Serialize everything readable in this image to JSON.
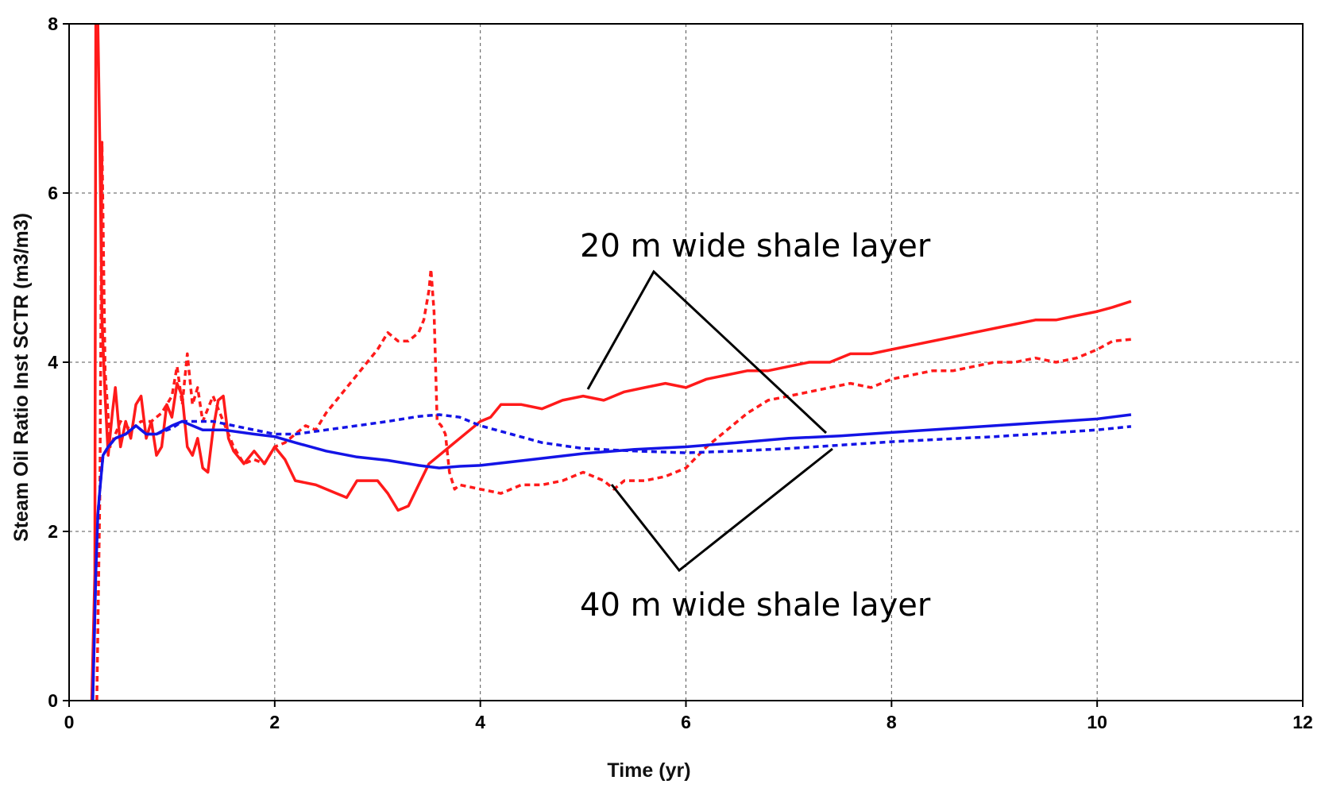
{
  "chart_data": {
    "type": "line",
    "xlabel": "Time (yr)",
    "ylabel": "Steam Oil Ratio Inst SCTR (m3/m3)",
    "xlim": [
      0,
      12
    ],
    "ylim": [
      0,
      8
    ],
    "x_ticks": [
      "0",
      "2",
      "4",
      "6",
      "8",
      "10",
      "12"
    ],
    "y_ticks": [
      "0",
      "2",
      "4",
      "6",
      "8"
    ],
    "grid": true,
    "annotations": [
      {
        "text": "20 m wide shale layer"
      },
      {
        "text": "40 m wide shale layer"
      }
    ],
    "series": [
      {
        "name": "red solid",
        "color": "#ff1a1a",
        "style": "solid",
        "points": [
          [
            0.22,
            0
          ],
          [
            0.25,
            1.5
          ],
          [
            0.26,
            8
          ],
          [
            0.28,
            8
          ],
          [
            0.3,
            6.5
          ],
          [
            0.32,
            4.5
          ],
          [
            0.35,
            3.6
          ],
          [
            0.38,
            2.9
          ],
          [
            0.42,
            3.4
          ],
          [
            0.45,
            3.7
          ],
          [
            0.5,
            3.0
          ],
          [
            0.55,
            3.3
          ],
          [
            0.6,
            3.1
          ],
          [
            0.65,
            3.5
          ],
          [
            0.7,
            3.6
          ],
          [
            0.75,
            3.1
          ],
          [
            0.8,
            3.3
          ],
          [
            0.85,
            2.9
          ],
          [
            0.9,
            3.0
          ],
          [
            0.95,
            3.5
          ],
          [
            1.0,
            3.35
          ],
          [
            1.05,
            3.75
          ],
          [
            1.1,
            3.6
          ],
          [
            1.15,
            3.0
          ],
          [
            1.2,
            2.9
          ],
          [
            1.25,
            3.1
          ],
          [
            1.3,
            2.75
          ],
          [
            1.35,
            2.7
          ],
          [
            1.4,
            3.2
          ],
          [
            1.45,
            3.55
          ],
          [
            1.5,
            3.6
          ],
          [
            1.55,
            3.1
          ],
          [
            1.6,
            2.95
          ],
          [
            1.7,
            2.8
          ],
          [
            1.8,
            2.95
          ],
          [
            1.9,
            2.8
          ],
          [
            2.0,
            3.0
          ],
          [
            2.1,
            2.85
          ],
          [
            2.2,
            2.6
          ],
          [
            2.4,
            2.55
          ],
          [
            2.6,
            2.45
          ],
          [
            2.7,
            2.4
          ],
          [
            2.8,
            2.6
          ],
          [
            3.0,
            2.6
          ],
          [
            3.1,
            2.45
          ],
          [
            3.2,
            2.25
          ],
          [
            3.3,
            2.3
          ],
          [
            3.4,
            2.55
          ],
          [
            3.5,
            2.8
          ],
          [
            3.6,
            2.9
          ],
          [
            3.7,
            3.0
          ],
          [
            3.8,
            3.1
          ],
          [
            3.9,
            3.2
          ],
          [
            4.0,
            3.3
          ],
          [
            4.1,
            3.35
          ],
          [
            4.2,
            3.5
          ],
          [
            4.4,
            3.5
          ],
          [
            4.6,
            3.45
          ],
          [
            4.8,
            3.55
          ],
          [
            5.0,
            3.6
          ],
          [
            5.2,
            3.55
          ],
          [
            5.4,
            3.65
          ],
          [
            5.6,
            3.7
          ],
          [
            5.8,
            3.75
          ],
          [
            6.0,
            3.7
          ],
          [
            6.2,
            3.8
          ],
          [
            6.4,
            3.85
          ],
          [
            6.6,
            3.9
          ],
          [
            6.8,
            3.9
          ],
          [
            7.0,
            3.95
          ],
          [
            7.2,
            4.0
          ],
          [
            7.4,
            4.0
          ],
          [
            7.6,
            4.1
          ],
          [
            7.8,
            4.1
          ],
          [
            8.0,
            4.15
          ],
          [
            8.2,
            4.2
          ],
          [
            8.4,
            4.25
          ],
          [
            8.6,
            4.3
          ],
          [
            8.8,
            4.35
          ],
          [
            9.0,
            4.4
          ],
          [
            9.2,
            4.45
          ],
          [
            9.4,
            4.5
          ],
          [
            9.6,
            4.5
          ],
          [
            9.8,
            4.55
          ],
          [
            10.0,
            4.6
          ],
          [
            10.15,
            4.65
          ],
          [
            10.33,
            4.72
          ]
        ]
      },
      {
        "name": "red dashed",
        "color": "#ff1a1a",
        "style": "dashed",
        "points": [
          [
            0.27,
            0
          ],
          [
            0.3,
            2.5
          ],
          [
            0.32,
            6.6
          ],
          [
            0.35,
            3.9
          ],
          [
            0.4,
            3.0
          ],
          [
            0.5,
            3.3
          ],
          [
            0.6,
            3.2
          ],
          [
            0.7,
            3.3
          ],
          [
            0.8,
            3.3
          ],
          [
            0.9,
            3.4
          ],
          [
            1.0,
            3.6
          ],
          [
            1.05,
            3.95
          ],
          [
            1.1,
            3.5
          ],
          [
            1.15,
            4.1
          ],
          [
            1.2,
            3.5
          ],
          [
            1.25,
            3.7
          ],
          [
            1.3,
            3.3
          ],
          [
            1.4,
            3.6
          ],
          [
            1.5,
            3.3
          ],
          [
            1.6,
            3.0
          ],
          [
            1.7,
            2.8
          ],
          [
            1.8,
            2.85
          ],
          [
            1.9,
            2.8
          ],
          [
            2.0,
            3.0
          ],
          [
            2.1,
            3.05
          ],
          [
            2.2,
            3.15
          ],
          [
            2.3,
            3.25
          ],
          [
            2.4,
            3.2
          ],
          [
            2.5,
            3.4
          ],
          [
            2.6,
            3.55
          ],
          [
            2.7,
            3.7
          ],
          [
            2.8,
            3.85
          ],
          [
            2.9,
            4.0
          ],
          [
            3.0,
            4.15
          ],
          [
            3.1,
            4.35
          ],
          [
            3.2,
            4.25
          ],
          [
            3.3,
            4.25
          ],
          [
            3.4,
            4.35
          ],
          [
            3.45,
            4.5
          ],
          [
            3.5,
            4.85
          ],
          [
            3.52,
            5.1
          ],
          [
            3.55,
            4.6
          ],
          [
            3.58,
            3.3
          ],
          [
            3.62,
            3.25
          ],
          [
            3.66,
            3.15
          ],
          [
            3.7,
            2.7
          ],
          [
            3.75,
            2.5
          ],
          [
            3.8,
            2.55
          ],
          [
            4.0,
            2.5
          ],
          [
            4.2,
            2.45
          ],
          [
            4.4,
            2.55
          ],
          [
            4.6,
            2.55
          ],
          [
            4.8,
            2.6
          ],
          [
            5.0,
            2.7
          ],
          [
            5.2,
            2.6
          ],
          [
            5.3,
            2.5
          ],
          [
            5.4,
            2.6
          ],
          [
            5.6,
            2.6
          ],
          [
            5.8,
            2.65
          ],
          [
            6.0,
            2.75
          ],
          [
            6.2,
            3.0
          ],
          [
            6.4,
            3.2
          ],
          [
            6.6,
            3.4
          ],
          [
            6.8,
            3.55
          ],
          [
            7.0,
            3.6
          ],
          [
            7.2,
            3.65
          ],
          [
            7.4,
            3.7
          ],
          [
            7.6,
            3.75
          ],
          [
            7.8,
            3.7
          ],
          [
            8.0,
            3.8
          ],
          [
            8.2,
            3.85
          ],
          [
            8.4,
            3.9
          ],
          [
            8.6,
            3.9
          ],
          [
            8.8,
            3.95
          ],
          [
            9.0,
            4.0
          ],
          [
            9.2,
            4.0
          ],
          [
            9.4,
            4.05
          ],
          [
            9.6,
            4.0
          ],
          [
            9.8,
            4.05
          ],
          [
            10.0,
            4.15
          ],
          [
            10.15,
            4.25
          ],
          [
            10.33,
            4.27
          ]
        ]
      },
      {
        "name": "blue solid",
        "color": "#1414e6",
        "style": "solid",
        "points": [
          [
            0.23,
            0
          ],
          [
            0.25,
            1.0
          ],
          [
            0.26,
            1.5
          ],
          [
            0.28,
            2.2
          ],
          [
            0.3,
            2.5
          ],
          [
            0.33,
            2.9
          ],
          [
            0.38,
            3.0
          ],
          [
            0.45,
            3.1
          ],
          [
            0.55,
            3.15
          ],
          [
            0.65,
            3.25
          ],
          [
            0.75,
            3.15
          ],
          [
            0.85,
            3.15
          ],
          [
            1.0,
            3.25
          ],
          [
            1.1,
            3.3
          ],
          [
            1.2,
            3.25
          ],
          [
            1.3,
            3.2
          ],
          [
            1.5,
            3.2
          ],
          [
            1.8,
            3.15
          ],
          [
            2.0,
            3.12
          ],
          [
            2.2,
            3.05
          ],
          [
            2.5,
            2.95
          ],
          [
            2.8,
            2.88
          ],
          [
            3.1,
            2.84
          ],
          [
            3.4,
            2.78
          ],
          [
            3.6,
            2.75
          ],
          [
            3.8,
            2.77
          ],
          [
            4.0,
            2.78
          ],
          [
            4.5,
            2.85
          ],
          [
            5.0,
            2.92
          ],
          [
            5.5,
            2.97
          ],
          [
            6.0,
            3.0
          ],
          [
            6.5,
            3.05
          ],
          [
            7.0,
            3.1
          ],
          [
            7.5,
            3.13
          ],
          [
            8.0,
            3.17
          ],
          [
            8.5,
            3.21
          ],
          [
            9.0,
            3.25
          ],
          [
            9.5,
            3.29
          ],
          [
            10.0,
            3.33
          ],
          [
            10.33,
            3.38
          ]
        ]
      },
      {
        "name": "blue dashed",
        "color": "#1414e6",
        "style": "dashed",
        "points": [
          [
            0.23,
            0
          ],
          [
            0.25,
            1.0
          ],
          [
            0.26,
            1.5
          ],
          [
            0.28,
            2.2
          ],
          [
            0.3,
            2.5
          ],
          [
            0.33,
            2.9
          ],
          [
            0.38,
            3.0
          ],
          [
            0.45,
            3.1
          ],
          [
            0.55,
            3.15
          ],
          [
            0.65,
            3.25
          ],
          [
            0.75,
            3.15
          ],
          [
            0.85,
            3.15
          ],
          [
            1.0,
            3.22
          ],
          [
            1.1,
            3.3
          ],
          [
            1.2,
            3.3
          ],
          [
            1.4,
            3.3
          ],
          [
            1.6,
            3.25
          ],
          [
            1.8,
            3.2
          ],
          [
            2.0,
            3.15
          ],
          [
            2.2,
            3.15
          ],
          [
            2.5,
            3.2
          ],
          [
            2.8,
            3.25
          ],
          [
            3.1,
            3.3
          ],
          [
            3.4,
            3.36
          ],
          [
            3.6,
            3.38
          ],
          [
            3.8,
            3.35
          ],
          [
            4.0,
            3.25
          ],
          [
            4.3,
            3.15
          ],
          [
            4.6,
            3.05
          ],
          [
            5.0,
            2.98
          ],
          [
            5.5,
            2.95
          ],
          [
            6.0,
            2.93
          ],
          [
            6.5,
            2.95
          ],
          [
            7.0,
            2.98
          ],
          [
            7.5,
            3.02
          ],
          [
            8.0,
            3.06
          ],
          [
            8.5,
            3.09
          ],
          [
            9.0,
            3.12
          ],
          [
            9.5,
            3.16
          ],
          [
            10.0,
            3.2
          ],
          [
            10.33,
            3.24
          ]
        ]
      }
    ]
  }
}
